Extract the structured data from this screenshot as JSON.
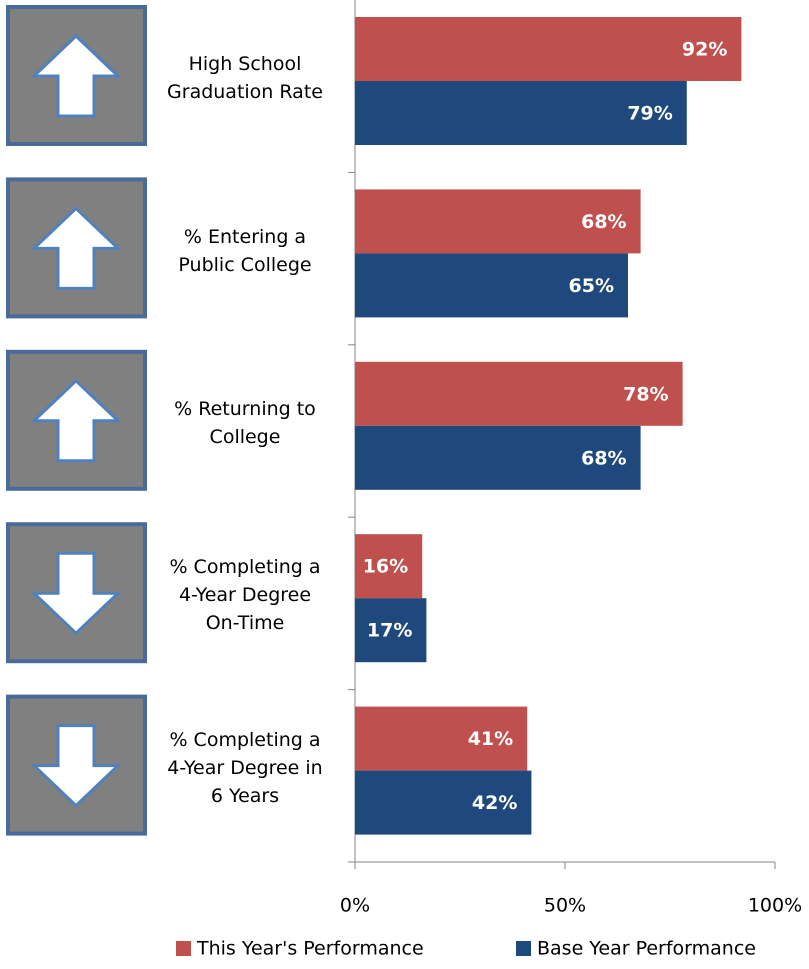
{
  "chart_data": {
    "type": "bar",
    "orientation": "horizontal",
    "categories": [
      "High School\nGraduation Rate",
      "% Entering a\nPublic College",
      "% Returning to\nCollege",
      "% Completing a\n4-Year Degree\nOn-Time",
      "% Completing a\n4-Year Degree in\n6 Years"
    ],
    "arrows": [
      "up",
      "up",
      "up",
      "down",
      "down"
    ],
    "series": [
      {
        "name": "This Year's Performance",
        "color": "#c0504d",
        "values": [
          92,
          68,
          78,
          16,
          41
        ],
        "value_labels": [
          "92%",
          "68%",
          "78%",
          "16%",
          "41%"
        ]
      },
      {
        "name": "Base Year Performance",
        "color": "#1f497d",
        "values": [
          79,
          65,
          68,
          17,
          42
        ],
        "value_labels": [
          "79%",
          "65%",
          "68%",
          "17%",
          "42%"
        ]
      }
    ],
    "xlim": [
      0,
      100
    ],
    "xticks": [
      {
        "value": 0,
        "label": "0%"
      },
      {
        "value": 50,
        "label": "50%"
      },
      {
        "value": 100,
        "label": "100%"
      }
    ],
    "legend": "bottom"
  }
}
